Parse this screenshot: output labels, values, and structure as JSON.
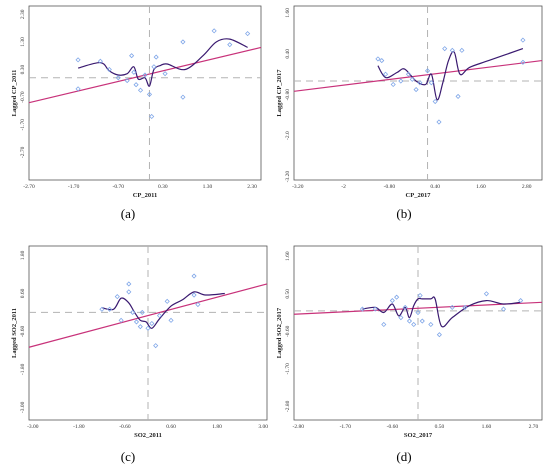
{
  "colors": {
    "point": "#7fa6e8",
    "regression": "#c8327a",
    "smooth": "#3a1a70",
    "guide": "#b3b3b3",
    "frame": "#555555"
  },
  "chart_data": [
    {
      "type": "scatter",
      "panel": "(a)",
      "caption": "(a)",
      "xlabel": "CP_2011",
      "ylabel": "Lagged CP_2011",
      "xlim": [
        -2.7,
        2.5
      ],
      "ylim": [
        -3.7,
        2.6
      ],
      "xticks": [
        "-2.70",
        "-1.70",
        "-0.70",
        "0.30",
        "1.30",
        "2.30"
      ],
      "xtick_values": [
        -2.7,
        -1.7,
        -0.7,
        0.3,
        1.3,
        2.3
      ],
      "yticks": [
        "2.30",
        "1.30",
        "0.30",
        "-0.70",
        "-1.70",
        "-2.70"
      ],
      "ytick_values": [
        2.3,
        1.3,
        0.3,
        -0.7,
        -1.7,
        -2.7
      ],
      "guide_x": 0.0,
      "guide_y": 0.0,
      "points": [
        [
          -1.6,
          -0.4
        ],
        [
          -1.6,
          0.65
        ],
        [
          -1.1,
          0.6
        ],
        [
          -0.9,
          0.3
        ],
        [
          -0.7,
          0.0
        ],
        [
          -0.5,
          -0.1
        ],
        [
          -0.4,
          0.8
        ],
        [
          -0.35,
          0.2
        ],
        [
          -0.3,
          -0.25
        ],
        [
          -0.2,
          -0.45
        ],
        [
          -0.1,
          0.1
        ],
        [
          0.0,
          -0.6
        ],
        [
          0.05,
          -1.4
        ],
        [
          0.1,
          0.4
        ],
        [
          0.15,
          0.75
        ],
        [
          0.35,
          0.15
        ],
        [
          0.75,
          1.3
        ],
        [
          0.75,
          -0.7
        ],
        [
          1.45,
          1.7
        ],
        [
          1.8,
          1.2
        ],
        [
          2.2,
          1.6
        ]
      ],
      "regression": [
        [
          -2.7,
          -0.9
        ],
        [
          2.5,
          1.1
        ]
      ],
      "smooth": [
        [
          -1.6,
          0.35
        ],
        [
          -1.1,
          0.55
        ],
        [
          -0.9,
          0.25
        ],
        [
          -0.7,
          0.1
        ],
        [
          -0.5,
          0.15
        ],
        [
          -0.35,
          0.4
        ],
        [
          -0.25,
          -0.05
        ],
        [
          -0.1,
          0.0
        ],
        [
          0.0,
          -0.3
        ],
        [
          0.1,
          0.3
        ],
        [
          0.25,
          0.45
        ],
        [
          0.4,
          0.5
        ],
        [
          0.8,
          0.3
        ],
        [
          1.2,
          0.8
        ],
        [
          1.5,
          1.3
        ],
        [
          1.8,
          1.4
        ],
        [
          2.2,
          1.1
        ]
      ]
    },
    {
      "type": "scatter",
      "panel": "(b)",
      "caption": "(b)",
      "xlabel": "CP_2017",
      "ylabel": "Lagged CP_2017",
      "xlim": [
        -3.3,
        3.2
      ],
      "ylim": [
        -3.3,
        1.8
      ],
      "xticks": [
        "-3.20",
        "-2",
        "-0.80",
        "0.40",
        "1.60",
        "2.80"
      ],
      "xtick_values": [
        -3.2,
        -2.0,
        -0.8,
        0.4,
        1.6,
        2.8
      ],
      "yticks": [
        "1.60",
        "0.40",
        "-0.80",
        "-2.0",
        "-3.20"
      ],
      "yticks_note": "tick labels as printed",
      "ytick_values": [
        1.6,
        0.4,
        -0.8,
        -2.0,
        -3.2
      ],
      "guide_x": 0.2,
      "guide_y": -0.4,
      "points": [
        [
          -1.1,
          0.25
        ],
        [
          -1.0,
          0.2
        ],
        [
          -0.9,
          -0.2
        ],
        [
          -0.7,
          -0.5
        ],
        [
          -0.5,
          -0.4
        ],
        [
          -0.3,
          -0.2
        ],
        [
          -0.2,
          -0.35
        ],
        [
          -0.1,
          -0.65
        ],
        [
          0.0,
          -0.45
        ],
        [
          0.2,
          -0.1
        ],
        [
          0.3,
          -0.45
        ],
        [
          0.4,
          -1.0
        ],
        [
          0.5,
          -1.6
        ],
        [
          0.65,
          0.55
        ],
        [
          0.85,
          0.5
        ],
        [
          1.0,
          -0.85
        ],
        [
          1.1,
          0.5
        ],
        [
          2.7,
          0.8
        ],
        [
          2.7,
          0.15
        ]
      ],
      "regression": [
        [
          -3.3,
          -0.7
        ],
        [
          3.2,
          0.2
        ]
      ],
      "smooth": [
        [
          -1.1,
          0.05
        ],
        [
          -0.9,
          -0.3
        ],
        [
          -0.6,
          -0.15
        ],
        [
          -0.4,
          -0.05
        ],
        [
          -0.1,
          -0.4
        ],
        [
          0.15,
          -0.5
        ],
        [
          0.3,
          -0.2
        ],
        [
          0.45,
          -0.95
        ],
        [
          0.6,
          -0.45
        ],
        [
          0.75,
          0.2
        ],
        [
          0.9,
          0.45
        ],
        [
          1.05,
          -0.2
        ],
        [
          1.3,
          0.0
        ],
        [
          1.8,
          0.2
        ],
        [
          2.7,
          0.55
        ]
      ]
    },
    {
      "type": "scatter",
      "panel": "(c)",
      "caption": "(c)",
      "xlabel": "SO2_2011",
      "ylabel": "Lagged SO2_2011",
      "xlim": [
        -3.1,
        3.1
      ],
      "ylim": [
        -3.4,
        2.1
      ],
      "xticks": [
        "-3.00",
        "-1.80",
        "-0.60",
        "0.60",
        "1.80",
        "3.00"
      ],
      "xtick_values": [
        -3.0,
        -1.8,
        -0.6,
        0.6,
        1.8,
        3.0
      ],
      "yticks": [
        "1.80",
        "0.60",
        "-0.60",
        "-1.80",
        "-3.00"
      ],
      "ytick_values": [
        1.8,
        0.6,
        -0.6,
        -1.8,
        -3.0
      ],
      "guide_x": 0.0,
      "guide_y": 0.0,
      "points": [
        [
          -1.2,
          0.1
        ],
        [
          -1.0,
          0.1
        ],
        [
          -0.8,
          0.5
        ],
        [
          -0.7,
          -0.25
        ],
        [
          -0.5,
          0.9
        ],
        [
          -0.5,
          0.65
        ],
        [
          -0.4,
          0.0
        ],
        [
          -0.3,
          -0.3
        ],
        [
          -0.2,
          -0.45
        ],
        [
          -0.15,
          0.0
        ],
        [
          0.0,
          -0.5
        ],
        [
          0.1,
          -0.35
        ],
        [
          0.2,
          -1.05
        ],
        [
          0.3,
          -0.1
        ],
        [
          0.5,
          0.35
        ],
        [
          0.6,
          -0.25
        ],
        [
          1.2,
          1.15
        ],
        [
          1.3,
          0.25
        ],
        [
          1.2,
          0.55
        ]
      ],
      "regression": [
        [
          -3.1,
          -1.1
        ],
        [
          3.1,
          0.9
        ]
      ],
      "smooth": [
        [
          -1.2,
          0.15
        ],
        [
          -0.9,
          0.1
        ],
        [
          -0.7,
          0.45
        ],
        [
          -0.5,
          0.3
        ],
        [
          -0.35,
          0.0
        ],
        [
          -0.2,
          -0.25
        ],
        [
          -0.05,
          -0.3
        ],
        [
          0.1,
          -0.5
        ],
        [
          0.3,
          -0.2
        ],
        [
          0.6,
          0.2
        ],
        [
          0.9,
          0.4
        ],
        [
          1.2,
          0.65
        ],
        [
          1.5,
          0.55
        ],
        [
          2.0,
          0.6
        ]
      ]
    },
    {
      "type": "scatter",
      "panel": "(d)",
      "caption": "(d)",
      "xlabel": "SO2_2017",
      "ylabel": "Lagged SO2_2017",
      "xlim": [
        -2.9,
        2.9
      ],
      "ylim": [
        -3.2,
        1.9
      ],
      "xticks": [
        "-2.80",
        "-1.70",
        "-0.60",
        "0.50",
        "1.60",
        "2.70"
      ],
      "xtick_values": [
        -2.8,
        -1.7,
        -0.6,
        0.5,
        1.6,
        2.7
      ],
      "yticks": [
        "1.60",
        "0.50",
        "-0.60",
        "-1.70",
        "-2.80"
      ],
      "ytick_values": [
        1.6,
        0.5,
        -0.6,
        -1.7,
        -2.8
      ],
      "guide_x": 0.0,
      "guide_y": 0.0,
      "points": [
        [
          -1.3,
          0.05
        ],
        [
          -1.0,
          0.05
        ],
        [
          -0.8,
          -0.4
        ],
        [
          -0.6,
          0.3
        ],
        [
          -0.5,
          0.4
        ],
        [
          -0.4,
          -0.2
        ],
        [
          -0.3,
          0.1
        ],
        [
          -0.2,
          -0.3
        ],
        [
          -0.1,
          -0.4
        ],
        [
          0.0,
          -0.05
        ],
        [
          0.05,
          0.45
        ],
        [
          0.1,
          -0.3
        ],
        [
          0.3,
          -0.4
        ],
        [
          0.5,
          -0.7
        ],
        [
          0.8,
          0.1
        ],
        [
          1.1,
          0.1
        ],
        [
          1.6,
          0.5
        ],
        [
          2.0,
          0.05
        ],
        [
          2.4,
          0.3
        ]
      ],
      "regression": [
        [
          -2.9,
          -0.1
        ],
        [
          2.9,
          0.25
        ]
      ],
      "smooth": [
        [
          -1.3,
          0.05
        ],
        [
          -1.0,
          0.1
        ],
        [
          -0.8,
          -0.05
        ],
        [
          -0.6,
          0.2
        ],
        [
          -0.45,
          -0.15
        ],
        [
          -0.3,
          0.1
        ],
        [
          -0.2,
          -0.2
        ],
        [
          -0.1,
          0.15
        ],
        [
          0.0,
          0.35
        ],
        [
          0.1,
          0.35
        ],
        [
          0.3,
          0.35
        ],
        [
          0.4,
          0.35
        ],
        [
          0.55,
          -0.45
        ],
        [
          0.8,
          -0.2
        ],
        [
          1.2,
          0.15
        ],
        [
          1.6,
          0.3
        ],
        [
          2.0,
          0.2
        ],
        [
          2.4,
          0.25
        ]
      ]
    }
  ]
}
